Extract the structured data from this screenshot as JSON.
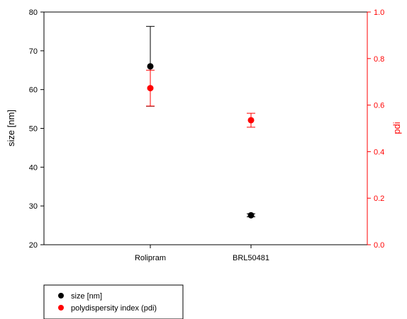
{
  "chart_data": {
    "type": "scatter",
    "categories": [
      "Rolipram",
      "BRL50481"
    ],
    "left_axis": {
      "label": "size [nm]",
      "ylim": [
        20,
        80
      ],
      "ticks": [
        20,
        30,
        40,
        50,
        60,
        70,
        80
      ],
      "color": "#000000"
    },
    "right_axis": {
      "label": "pdi",
      "ylim": [
        0.0,
        1.0
      ],
      "ticks": [
        "0.0",
        "0.2",
        "0.4",
        "0.6",
        "0.8",
        "1.0"
      ],
      "color": "#ff0000"
    },
    "series": [
      {
        "name": "size [nm]",
        "axis": "left",
        "color": "#000000",
        "values": [
          66.0,
          27.6
        ],
        "errors": [
          10.3,
          0.4
        ]
      },
      {
        "name": "polydispersity index (pdi)",
        "axis": "right",
        "color": "#ff0000",
        "values": [
          0.673,
          0.535
        ],
        "errors": [
          0.077,
          0.03
        ]
      }
    ],
    "grid": false,
    "legend_position": "bottom-left"
  }
}
